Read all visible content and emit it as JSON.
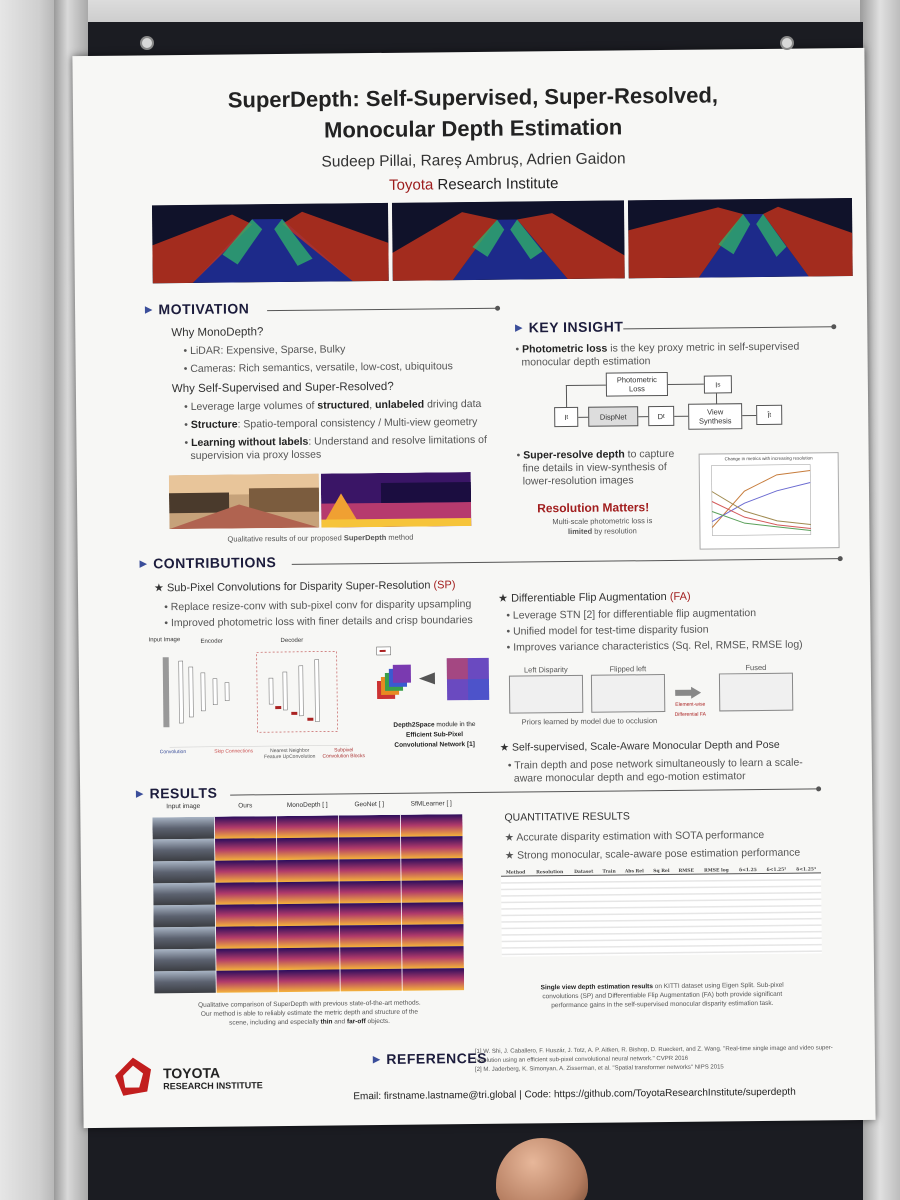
{
  "poster": {
    "title_line1": "SuperDepth: Self-Supervised, Super-Resolved,",
    "title_line2": "Monocular Depth Estimation",
    "authors": "Sudeep Pillai,  Rareș Ambruș,  Adrien Gaidon",
    "institute_brand": "Toyota",
    "institute_rest": " Research Institute"
  },
  "motivation": {
    "heading": "MOTIVATION",
    "why_mono": "Why MonoDepth?",
    "mono_bullets": [
      "LiDAR: Expensive, Sparse, Bulky",
      "Cameras: Rich semantics, versatile, low-cost, ubiquitous"
    ],
    "why_self": "Why Self-Supervised and Super-Resolved?",
    "b1_pre": "Leverage large volumes of ",
    "b1_struct": "structured",
    "b1_mid": ", ",
    "b1_unlab": "unlabeled",
    "b1_post": " driving data",
    "b2_bold": "Structure",
    "b2_rest": ": Spatio-temporal consistency / Multi-view geometry",
    "b3_red": "Learning without labels",
    "b3_rest": ": Understand and resolve limitations of",
    "b3_line2": "supervision via proxy losses",
    "caption_pre": "Qualitative results of our proposed ",
    "caption_bold": "SuperDepth",
    "caption_post": " method"
  },
  "key_insight": {
    "heading": "KEY INSIGHT",
    "b1_bold": "Photometric loss",
    "b1_rest": " is the key proxy metric in self-supervised",
    "b1_line2": "monocular depth estimation",
    "diagram": {
      "photometric": "Photometric",
      "loss": "Loss",
      "dispnet": "DispNet",
      "view": "View",
      "synthesis": "Synthesis",
      "i_t": "I",
      "d_t": "D",
      "i_s": "I",
      "i_hat": "Î",
      "sub_t": "t",
      "sub_s": "s"
    },
    "b2_bold": "Super-resolve depth",
    "b2_rest": " to capture",
    "b2_line2": "fine details in view-synthesis of",
    "b2_line3": "lower-resolution images",
    "resolution_matters": "Resolution Matters!",
    "res_note1": "Multi-scale photometric loss is",
    "res_note_bold": "limited",
    "res_note2": " by resolution",
    "chart_title": "Change in metrics with increasing resolution"
  },
  "contributions": {
    "heading": "CONTRIBUTIONS",
    "sp_title_pre": "Sub-Pixel Convolutions for Disparity Super-Resolution ",
    "sp_title_tag": "(SP)",
    "sp_b1": "Replace resize-conv with sub-pixel conv for disparity upsampling",
    "sp_b2": "Improved photometric loss with finer details and crisp boundaries",
    "encoder": "Encoder",
    "decoder": "Decoder",
    "input_image": "Input Image",
    "convolution": "Convolution",
    "skip": "Skip Connections",
    "nn_up": "Nearest Neighbor Feature UpConvolution",
    "subpixel_blocks": "Subpixel Convolution Blocks",
    "d2s_title": "Depth2Space",
    "d2s_desc1": " module in the",
    "d2s_desc2": "Efficient Sub-Pixel",
    "d2s_desc3": "Convolutional Network [1]",
    "fa_title_pre": "Differentiable Flip Augmentation ",
    "fa_title_tag": "(FA)",
    "fa_b1": "Leverage STN [2] for differentiable flip augmentation",
    "fa_b2": "Unified model for test-time disparity fusion",
    "fa_b3": "Improves variance characteristics (Sq. Rel, RMSE, RMSE log)",
    "left_disparity": "Left Disparity",
    "flipped_left": "Flipped left",
    "fused": "Fused",
    "priors": "Priors learned by model due to occlusion",
    "fa_arrow_label": "Element-wise Differential FA",
    "pose_title": "Self-supervised, Scale-Aware Monocular Depth and Pose",
    "pose_b1": "Train depth and pose network simultaneously to learn a scale-",
    "pose_b2": "aware monocular depth and ego-motion estimator"
  },
  "results": {
    "heading": "RESULTS",
    "columns": [
      "Input image",
      "Ours",
      "MonoDepth [ ]",
      "GeoNet [ ]",
      "SfMLearner [ ]"
    ],
    "caption1": "Qualitative comparison of SuperDepth with previous state-of-the-art methods.",
    "caption2": "Our method is able to reliably estimate the metric depth and structure of the",
    "caption3_pre": "scene, including and especially ",
    "caption3_thin": "thin",
    "caption3_mid": " and ",
    "caption3_far": "far-off",
    "caption3_post": " objects.",
    "quant_heading": "QUANTITATIVE RESULTS",
    "quant_b1": "Accurate disparity estimation with SOTA performance",
    "quant_b2": "Strong monocular, scale-aware pose estimation performance",
    "table_headers": [
      "Method",
      "Resolution",
      "Dataset",
      "Train",
      "Abs Rel",
      "Sq Rel",
      "RMSE",
      "RMSE log",
      "δ<1.25",
      "δ<1.25²",
      "δ<1.25³"
    ],
    "table_caption1_bold": "Single view depth estimation results",
    "table_caption1_rest": " on KITTI dataset using Eigen Split. Sub-pixel",
    "table_caption2": "convolutions (SP) and Differentiable Flip Augmentation (FA) both provide significant",
    "table_caption3": "performance gains in the self-supervised monocular disparity estimation task."
  },
  "references": {
    "heading": "REFERENCES",
    "ref1": "[1] W. Shi, J. Caballero, F. Huszár, J. Totz, A. P. Aitken, R. Bishop, D. Rueckert, and Z. Wang. \"Real-time single image and video super- resolution using an efficient sub-pixel convolutional neural network.\" CVPR 2016",
    "ref2": "[2] M. Jaderberg, K. Simonyan, A. Zisserman, et al. \"Spatial transformer networks\" NIPS 2015"
  },
  "logo": {
    "line1": "TOYOTA",
    "line2": "RESEARCH INSTITUTE"
  },
  "footer": {
    "email_label": "Email: ",
    "email": "firstname.lastname@tri.global",
    "sep": " | ",
    "code_label": "Code: ",
    "code_url": "https://github.com/ToyotaResearchInstitute/superdepth"
  },
  "colors": {
    "accent_red": "#a11d1d",
    "heading_blue": "#1c1c3c",
    "board": "#1b1c22"
  }
}
